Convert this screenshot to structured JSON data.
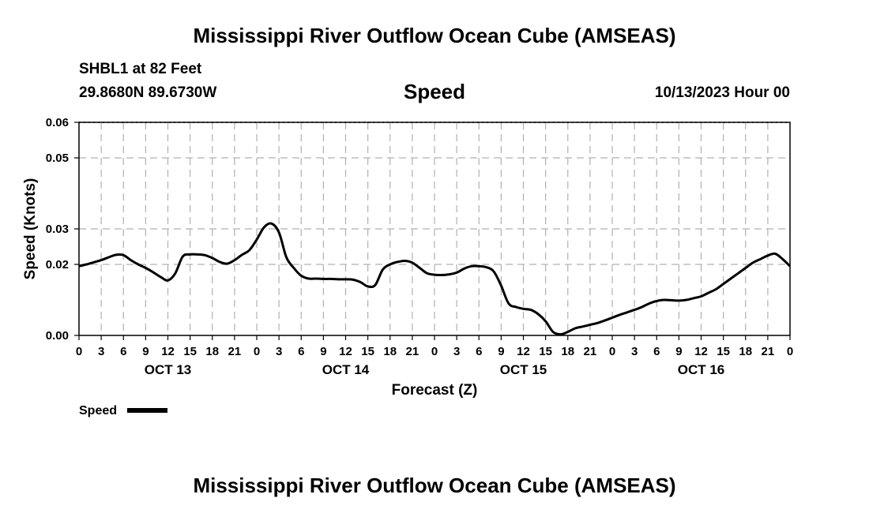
{
  "header": {
    "title": "Mississippi River Outflow Ocean Cube (AMSEAS)",
    "station": "SHBL1 at 82 Feet",
    "coordinates": "29.8680N  89.6730W",
    "subtitle": "Speed",
    "datetime": "10/13/2023 Hour 00"
  },
  "footer": {
    "title": "Mississippi River Outflow Ocean Cube (AMSEAS)"
  },
  "chart_data": {
    "type": "line",
    "title": "Speed",
    "xlabel": "Forecast (Z)",
    "ylabel": "Speed (Knots)",
    "xlim": [
      0,
      96
    ],
    "ylim": [
      0,
      0.06
    ],
    "yticks": [
      "0.00",
      "0.02",
      "0.03",
      "0.05",
      "0.06"
    ],
    "ytick_values": [
      0,
      0.02,
      0.03,
      0.05,
      0.06
    ],
    "xtick_hours": [
      0,
      3,
      6,
      9,
      12,
      15,
      18,
      21,
      24,
      27,
      30,
      33,
      36,
      39,
      42,
      45,
      48,
      51,
      54,
      57,
      60,
      63,
      66,
      69,
      72,
      75,
      78,
      81,
      84,
      87,
      90,
      93,
      96
    ],
    "xtick_labels": [
      "0",
      "3",
      "6",
      "9",
      "12",
      "15",
      "18",
      "21",
      "0",
      "3",
      "6",
      "9",
      "12",
      "15",
      "18",
      "21",
      "0",
      "3",
      "6",
      "9",
      "12",
      "15",
      "18",
      "21",
      "0",
      "3",
      "6",
      "9",
      "12",
      "15",
      "18",
      "21",
      "0"
    ],
    "date_labels": [
      {
        "label": "OCT 13",
        "hour": 12
      },
      {
        "label": "OCT 14",
        "hour": 36
      },
      {
        "label": "OCT 15",
        "hour": 60
      },
      {
        "label": "OCT 16",
        "hour": 84
      }
    ],
    "grid": true,
    "legend": {
      "label": "Speed",
      "placement": "bottom-left"
    },
    "series": [
      {
        "name": "Speed",
        "x": [
          0,
          1,
          2,
          3,
          4,
          5,
          6,
          7,
          8,
          9,
          10,
          11,
          12,
          13,
          14,
          15,
          16,
          17,
          18,
          19,
          20,
          21,
          22,
          23,
          24,
          25,
          26,
          27,
          28,
          29,
          30,
          31,
          32,
          33,
          34,
          35,
          36,
          37,
          38,
          39,
          40,
          41,
          42,
          43,
          44,
          45,
          46,
          47,
          48,
          49,
          50,
          51,
          52,
          53,
          54,
          55,
          56,
          57,
          58,
          59,
          60,
          61,
          62,
          63,
          64,
          65,
          66,
          67,
          68,
          69,
          70,
          71,
          72,
          73,
          74,
          75,
          76,
          77,
          78,
          79,
          80,
          81,
          82,
          83,
          84,
          85,
          86,
          87,
          88,
          89,
          90,
          91,
          92,
          93,
          94,
          95,
          96
        ],
        "values": [
          0.0195,
          0.02,
          0.0206,
          0.0212,
          0.022,
          0.0227,
          0.0226,
          0.0212,
          0.02,
          0.019,
          0.0178,
          0.0165,
          0.0155,
          0.0175,
          0.0222,
          0.0228,
          0.0228,
          0.0226,
          0.0218,
          0.0207,
          0.0202,
          0.0212,
          0.0227,
          0.024,
          0.027,
          0.0305,
          0.0315,
          0.029,
          0.022,
          0.019,
          0.0168,
          0.016,
          0.016,
          0.0159,
          0.0159,
          0.0158,
          0.0158,
          0.0157,
          0.015,
          0.0138,
          0.0142,
          0.0185,
          0.02,
          0.0207,
          0.021,
          0.0205,
          0.019,
          0.0175,
          0.0171,
          0.017,
          0.0172,
          0.0177,
          0.0188,
          0.0195,
          0.0195,
          0.0192,
          0.018,
          0.014,
          0.009,
          0.008,
          0.0075,
          0.0072,
          0.006,
          0.004,
          0.001,
          0.0003,
          0.001,
          0.002,
          0.0025,
          0.003,
          0.0035,
          0.0042,
          0.005,
          0.0058,
          0.0065,
          0.0072,
          0.008,
          0.009,
          0.0097,
          0.01,
          0.0099,
          0.0098,
          0.01,
          0.0105,
          0.011,
          0.012,
          0.013,
          0.0145,
          0.016,
          0.0175,
          0.019,
          0.0205,
          0.0215,
          0.0225,
          0.023,
          0.0215,
          0.0195
        ],
        "color": "#000000"
      }
    ]
  }
}
